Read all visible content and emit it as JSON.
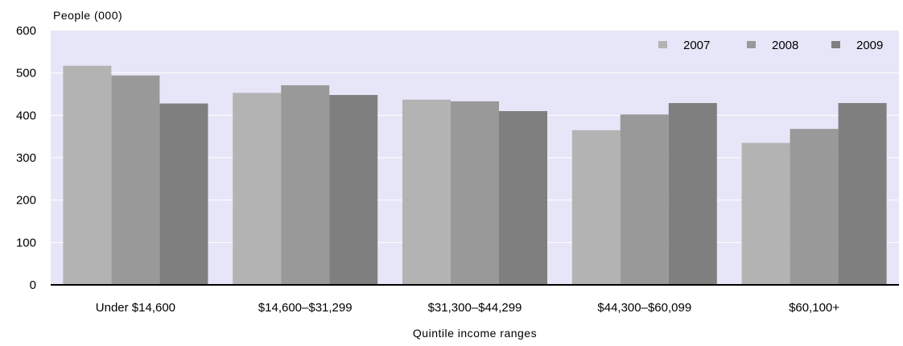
{
  "chart_data": {
    "type": "bar",
    "ylabel": "People (000)",
    "xlabel": "Quintile income ranges",
    "ylim": [
      0,
      600
    ],
    "yticks": [
      0,
      100,
      200,
      300,
      400,
      500,
      600
    ],
    "grid": true,
    "legend_position": "top-right",
    "plot_background": "#e6e6f8",
    "categories": [
      "Under $14,600",
      "$14,600–$31,299",
      "$31,300–$44,299",
      "$44,300–$60,099",
      "$60,100+"
    ],
    "series": [
      {
        "name": "2007",
        "color": "#b3b3b3",
        "values": [
          517,
          453,
          437,
          365,
          335
        ]
      },
      {
        "name": "2008",
        "color": "#999999",
        "values": [
          494,
          471,
          433,
          402,
          368
        ]
      },
      {
        "name": "2009",
        "color": "#7f7f7f",
        "values": [
          428,
          448,
          410,
          429,
          429
        ]
      }
    ]
  }
}
